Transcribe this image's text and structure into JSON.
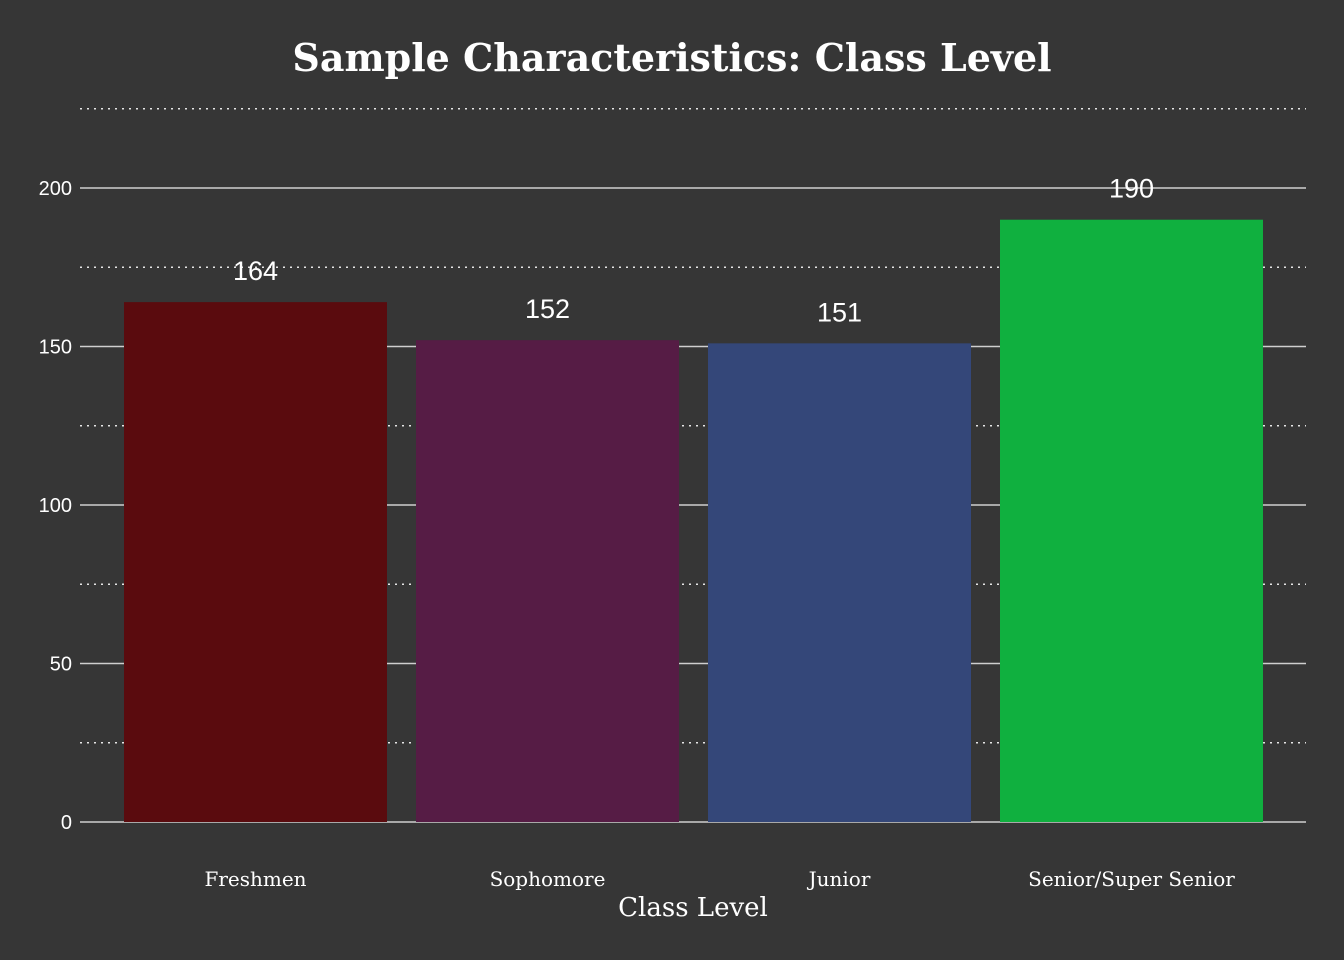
{
  "chart_data": {
    "type": "bar",
    "title": "Sample Characteristics: Class Level",
    "xlabel": "Class Level",
    "ylabel": "",
    "categories": [
      "Freshmen",
      "Sophomore",
      "Junior",
      "Senior/Super Senior"
    ],
    "values": [
      164,
      152,
      151,
      190
    ],
    "data_labels": [
      "164",
      "152",
      "151",
      "190"
    ],
    "colors": [
      "#5a0b0e",
      "#561c45",
      "#344779",
      "#10b03f"
    ],
    "ylim": [
      0,
      225
    ],
    "yticks": [
      0,
      50,
      100,
      150,
      200
    ],
    "ytick_labels": [
      "0",
      "50",
      "100",
      "150",
      "200"
    ],
    "minor_gridlines": [
      25,
      75,
      125,
      175,
      225
    ],
    "grid": true,
    "legend": "none",
    "background": "#363636"
  }
}
